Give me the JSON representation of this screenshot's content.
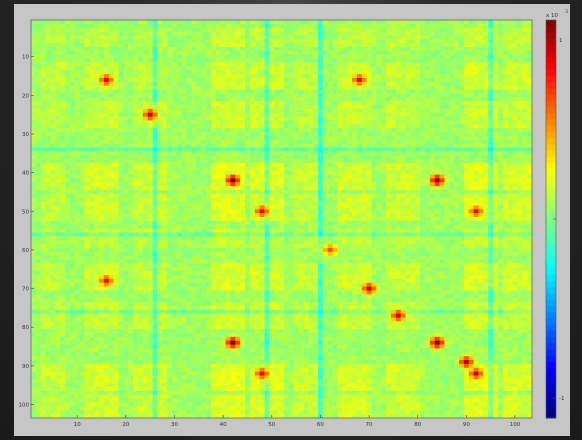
{
  "chart_data": {
    "type": "heatmap",
    "title": "",
    "xlabel": "",
    "ylabel": "",
    "x_ticks": [
      10,
      20,
      30,
      40,
      50,
      60,
      70,
      80,
      90,
      100
    ],
    "y_ticks": [
      10,
      20,
      30,
      40,
      50,
      60,
      70,
      80,
      90,
      100
    ],
    "xlim": [
      1,
      103
    ],
    "ylim": [
      1,
      103
    ],
    "grid": false,
    "colormap": "jet",
    "colorbar": {
      "exponent_label": "x 10",
      "exponent_power": "-3",
      "tick_labels": [
        "1",
        "",
        "-1"
      ]
    },
    "matrix_description_values": {
      "background_level": 0.0,
      "hotspots": [
        {
          "row": 16,
          "col": 16,
          "value": 0.8
        },
        {
          "row": 16,
          "col": 68,
          "value": 0.8
        },
        {
          "row": 25,
          "col": 25,
          "value": 0.85
        },
        {
          "row": 42,
          "col": 42,
          "value": 1.0
        },
        {
          "row": 42,
          "col": 84,
          "value": 1.0
        },
        {
          "row": 50,
          "col": 48,
          "value": 0.8
        },
        {
          "row": 50,
          "col": 92,
          "value": 0.75
        },
        {
          "row": 60,
          "col": 62,
          "value": 0.6
        },
        {
          "row": 68,
          "col": 16,
          "value": 0.75
        },
        {
          "row": 70,
          "col": 70,
          "value": 0.85
        },
        {
          "row": 77,
          "col": 76,
          "value": 0.85
        },
        {
          "row": 84,
          "col": 42,
          "value": 1.0
        },
        {
          "row": 84,
          "col": 84,
          "value": 1.0
        },
        {
          "row": 89,
          "col": 90,
          "value": 0.9
        },
        {
          "row": 92,
          "col": 48,
          "value": 0.8
        },
        {
          "row": 92,
          "col": 92,
          "value": 0.85
        }
      ]
    }
  },
  "colors": {
    "frame": "#c6c6c6",
    "page_bg": "#2a2a2a"
  }
}
